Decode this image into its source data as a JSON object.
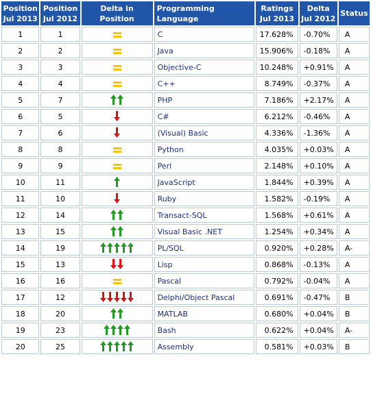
{
  "headers": {
    "pos_2013": "Position Jul 2013",
    "pos_2012": "Position Jul 2012",
    "delta_pos": "Delta in Position",
    "language": "Programming Language",
    "ratings": "Ratings Jul 2013",
    "delta": "Delta Jul 2012",
    "status": "Status"
  },
  "header_lines": {
    "pos_2013": [
      "Position",
      "Jul 2013"
    ],
    "pos_2012": [
      "Position",
      "Jul 2012"
    ],
    "ratings": [
      "Ratings",
      "Jul 2013"
    ],
    "delta": [
      "Delta",
      "Jul 2012"
    ]
  },
  "colors": {
    "header_bg": "#2155a8",
    "arrow_up": "#1f9d1f",
    "arrow_down": "#e01010",
    "equal": "#f5c300",
    "language_text": "#1c2d86"
  },
  "rows": [
    {
      "pos2013": "1",
      "pos2012": "1",
      "change": "equal",
      "language": "C",
      "rating": "17.628%",
      "delta": "-0.70%",
      "status": "A"
    },
    {
      "pos2013": "2",
      "pos2012": "2",
      "change": "equal",
      "language": "Java",
      "rating": "15.906%",
      "delta": "-0.18%",
      "status": "A"
    },
    {
      "pos2013": "3",
      "pos2012": "3",
      "change": "equal",
      "language": "Objective-C",
      "rating": "10.248%",
      "delta": "+0.91%",
      "status": "A"
    },
    {
      "pos2013": "4",
      "pos2012": "4",
      "change": "equal",
      "language": "C++",
      "rating": "8.749%",
      "delta": "-0.37%",
      "status": "A"
    },
    {
      "pos2013": "5",
      "pos2012": "7",
      "change": "up",
      "language": "PHP",
      "rating": "7.186%",
      "delta": "+2.17%",
      "status": "A"
    },
    {
      "pos2013": "6",
      "pos2012": "5",
      "change": "down",
      "language": "C#",
      "rating": "6.212%",
      "delta": "-0.46%",
      "status": "A"
    },
    {
      "pos2013": "7",
      "pos2012": "6",
      "change": "down",
      "language": "(Visual) Basic",
      "rating": "4.336%",
      "delta": "-1.36%",
      "status": "A"
    },
    {
      "pos2013": "8",
      "pos2012": "8",
      "change": "equal",
      "language": "Python",
      "rating": "4.035%",
      "delta": "+0.03%",
      "status": "A"
    },
    {
      "pos2013": "9",
      "pos2012": "9",
      "change": "equal",
      "language": "Perl",
      "rating": "2.148%",
      "delta": "+0.10%",
      "status": "A"
    },
    {
      "pos2013": "10",
      "pos2012": "11",
      "change": "up",
      "language": "JavaScript",
      "rating": "1.844%",
      "delta": "+0.39%",
      "status": "A"
    },
    {
      "pos2013": "11",
      "pos2012": "10",
      "change": "down",
      "language": "Ruby",
      "rating": "1.582%",
      "delta": "-0.19%",
      "status": "A"
    },
    {
      "pos2013": "12",
      "pos2012": "14",
      "change": "up",
      "language": "Transact-SQL",
      "rating": "1.568%",
      "delta": "+0.61%",
      "status": "A"
    },
    {
      "pos2013": "13",
      "pos2012": "15",
      "change": "up",
      "language": "Visual Basic .NET",
      "rating": "1.254%",
      "delta": "+0.34%",
      "status": "A"
    },
    {
      "pos2013": "14",
      "pos2012": "19",
      "change": "up",
      "language": "PL/SQL",
      "rating": "0.920%",
      "delta": "+0.28%",
      "status": "A-"
    },
    {
      "pos2013": "15",
      "pos2012": "13",
      "change": "down",
      "language": "Lisp",
      "rating": "0.868%",
      "delta": "-0.13%",
      "status": "A"
    },
    {
      "pos2013": "16",
      "pos2012": "16",
      "change": "equal",
      "language": "Pascal",
      "rating": "0.792%",
      "delta": "-0.04%",
      "status": "A"
    },
    {
      "pos2013": "17",
      "pos2012": "12",
      "change": "down",
      "language": "Delphi/Object Pascal",
      "rating": "0.691%",
      "delta": "-0.47%",
      "status": "B"
    },
    {
      "pos2013": "18",
      "pos2012": "20",
      "change": "up",
      "language": "MATLAB",
      "rating": "0.680%",
      "delta": "+0.04%",
      "status": "B"
    },
    {
      "pos2013": "19",
      "pos2012": "23",
      "change": "up",
      "language": "Bash",
      "rating": "0.622%",
      "delta": "+0.04%",
      "status": "A-"
    },
    {
      "pos2013": "20",
      "pos2012": "25",
      "change": "up",
      "language": "Assembly",
      "rating": "0.581%",
      "delta": "+0.03%",
      "status": "B"
    }
  ]
}
